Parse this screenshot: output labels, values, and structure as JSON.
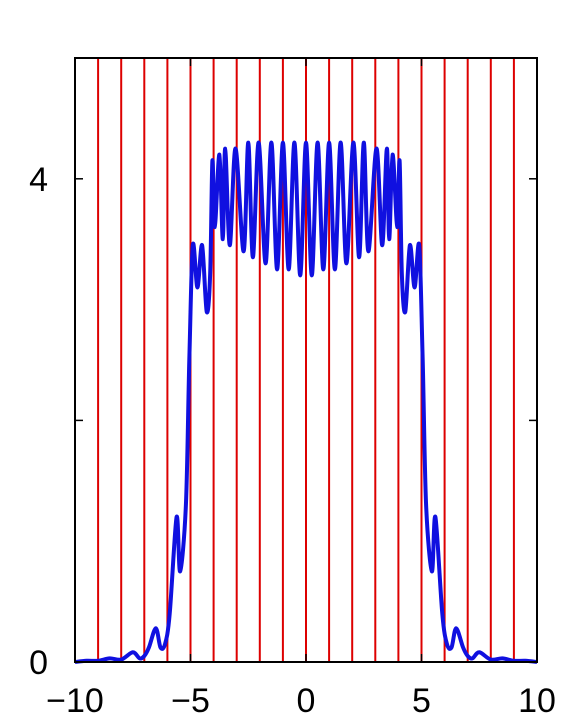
{
  "chart_data": {
    "type": "line",
    "title": "",
    "xlabel": "",
    "ylabel": "",
    "xlim": [
      -10,
      10
    ],
    "ylim": [
      0,
      5
    ],
    "x_ticks": [
      -10,
      -5,
      0,
      5,
      10
    ],
    "x_tick_labels": [
      "−10",
      "−5",
      "0",
      "5",
      "10"
    ],
    "y_ticks": [
      0,
      2,
      4
    ],
    "y_tick_labels": [
      "0",
      "",
      "4"
    ],
    "grid": false,
    "vertical_lines": {
      "color": "#dd0000",
      "x": [
        -9,
        -8,
        -7,
        -6,
        -5,
        -4,
        -3,
        -2,
        -1,
        0,
        1,
        2,
        3,
        4,
        5,
        6,
        7,
        8,
        9
      ]
    },
    "series": [
      {
        "color": "#1010e0",
        "x": [
          -10,
          -9.5,
          -9,
          -8.5,
          -8,
          -7.5,
          -7.2,
          -7,
          -6.8,
          -6.5,
          -6.3,
          -6.1,
          -5.9,
          -5.6,
          -5.45,
          -5.2,
          -5.05,
          -4.9,
          -4.7,
          -4.5,
          -4.3,
          -4.15,
          -4.05,
          -3.95,
          -3.75,
          -3.6,
          -3.5,
          -3.3,
          -3.05,
          -2.7,
          -2.5,
          -2.3,
          -2.05,
          -1.75,
          -1.5,
          -1.25,
          -1.0,
          -0.75,
          -0.5,
          -0.25,
          0,
          0.25,
          0.5,
          0.75,
          1.0,
          1.25,
          1.5,
          1.75,
          2.05,
          2.3,
          2.5,
          2.7,
          3.05,
          3.3,
          3.5,
          3.6,
          3.75,
          3.95,
          4.05,
          4.15,
          4.3,
          4.5,
          4.7,
          4.9,
          5.05,
          5.2,
          5.45,
          5.6,
          5.9,
          6.1,
          6.3,
          6.5,
          6.8,
          7,
          7.2,
          7.5,
          8,
          8.5,
          9,
          9.5,
          10
        ],
        "y": [
          0,
          0.01,
          0.01,
          0.03,
          0.02,
          0.08,
          0.03,
          0.05,
          0.12,
          0.28,
          0.12,
          0.15,
          0.4,
          1.2,
          0.75,
          1.3,
          2.5,
          3.45,
          3.1,
          3.45,
          2.9,
          3.2,
          4.15,
          3.6,
          4.2,
          3.5,
          4.25,
          3.45,
          4.25,
          3.4,
          4.3,
          3.35,
          4.3,
          3.3,
          4.3,
          3.25,
          4.3,
          3.25,
          4.3,
          3.2,
          4.3,
          3.2,
          4.3,
          3.25,
          4.3,
          3.25,
          4.3,
          3.3,
          4.3,
          3.35,
          4.3,
          3.4,
          4.25,
          3.45,
          4.25,
          3.5,
          4.2,
          3.6,
          4.15,
          3.2,
          2.9,
          3.45,
          3.1,
          3.45,
          2.5,
          1.3,
          0.75,
          1.2,
          0.4,
          0.15,
          0.12,
          0.28,
          0.12,
          0.05,
          0.03,
          0.08,
          0.02,
          0.03,
          0.01,
          0.01,
          0
        ]
      }
    ]
  }
}
